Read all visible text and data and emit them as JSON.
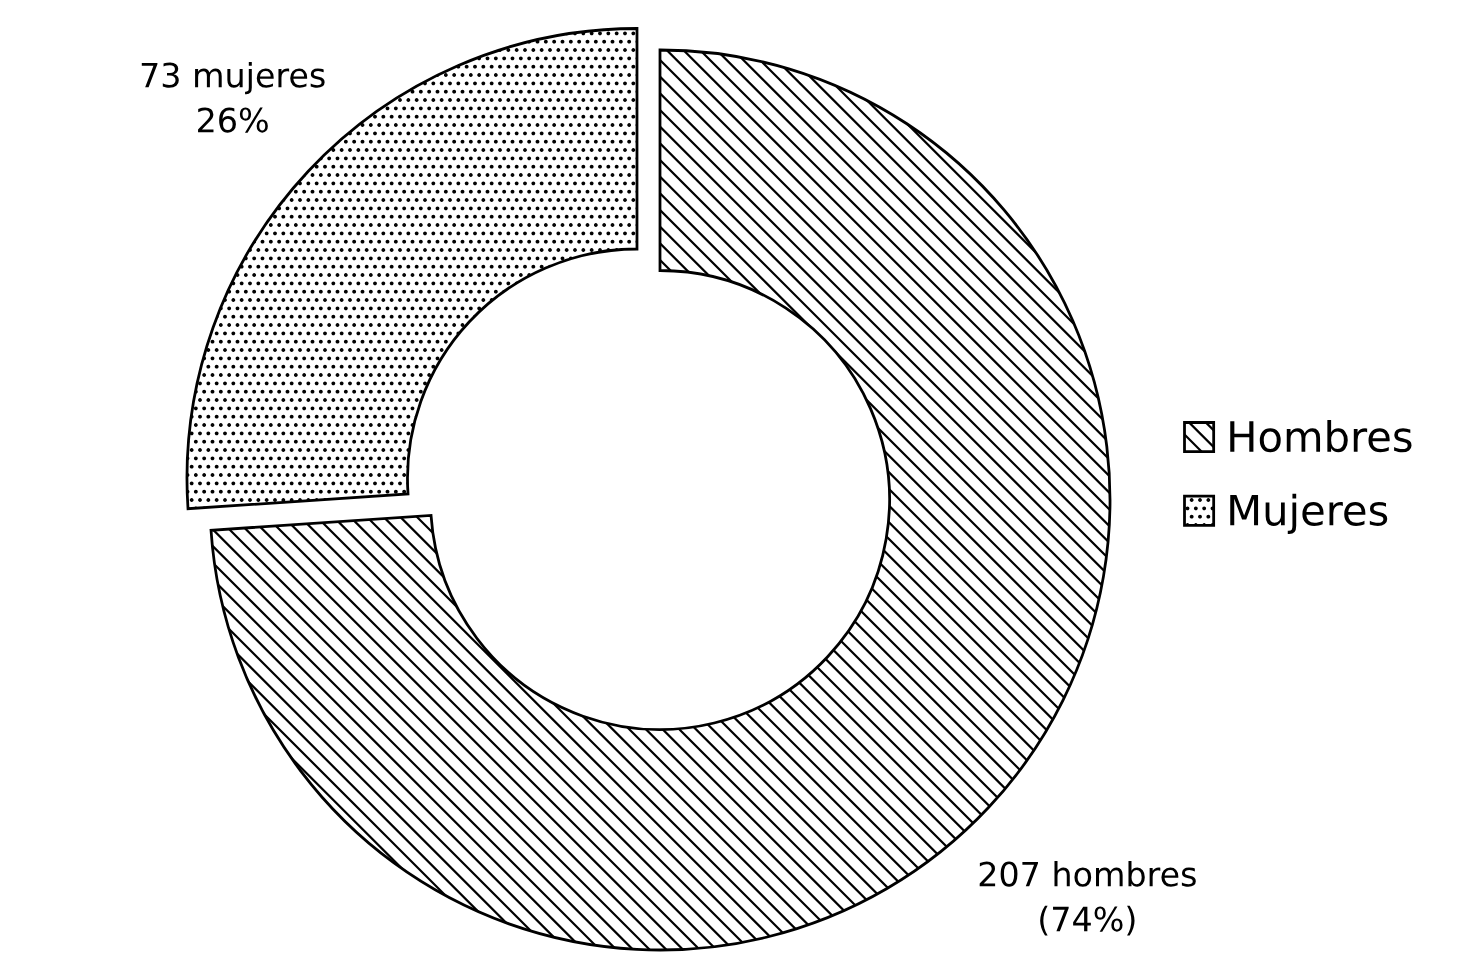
{
  "chart_data": {
    "type": "donut",
    "categories": [
      "Hombres",
      "Mujeres"
    ],
    "values": [
      207,
      73
    ],
    "colors": [
      "#ffffff",
      "#ffffff"
    ],
    "value_labels": [
      "207 hombres\n(74%)",
      "73 mujeres\n26%"
    ],
    "legend": "right"
  }
}
